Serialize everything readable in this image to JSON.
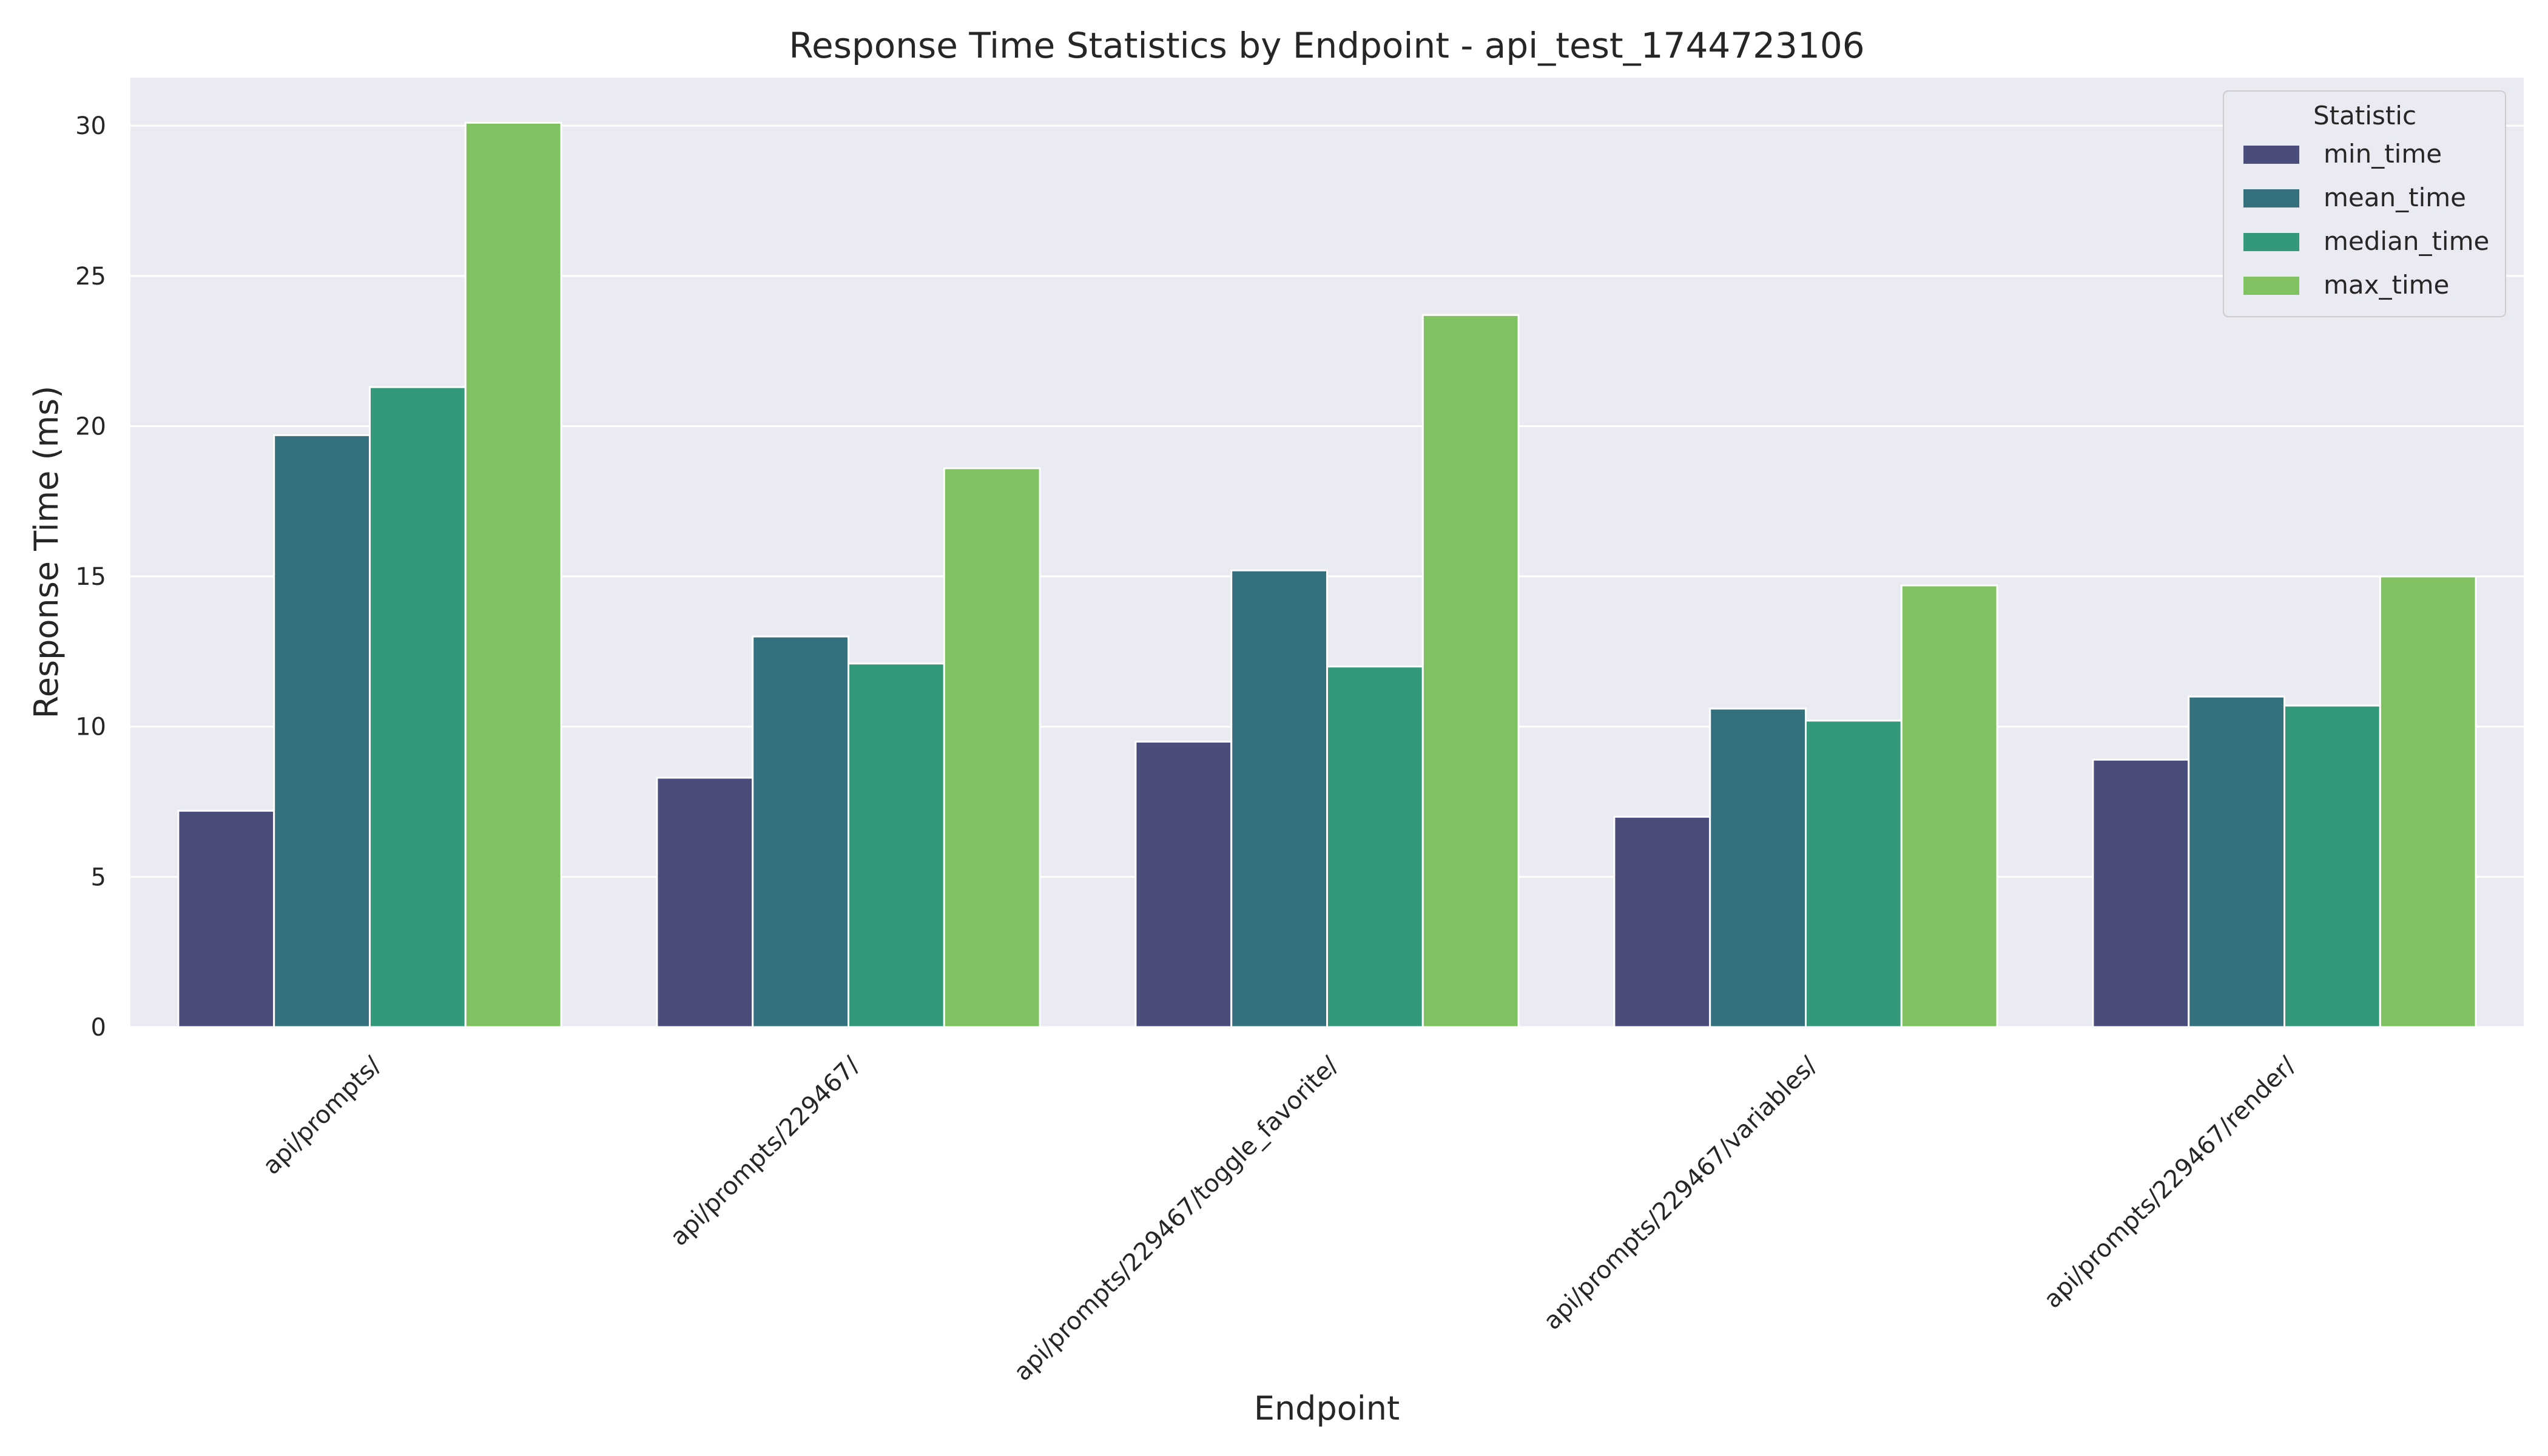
{
  "chart_data": {
    "type": "bar",
    "title": "Response Time Statistics by Endpoint - api_test_1744723106",
    "xlabel": "Endpoint",
    "ylabel": "Response Time (ms)",
    "categories": [
      "api/prompts/",
      "api/prompts/229467/",
      "api/prompts/229467/toggle_favorite/",
      "api/prompts/229467/variables/",
      "api/prompts/229467/render/"
    ],
    "series": [
      {
        "name": "min_time",
        "color": "#4a4c7c",
        "values": [
          7.2,
          8.3,
          9.5,
          7.0,
          8.9
        ]
      },
      {
        "name": "mean_time",
        "color": "#35707f",
        "values": [
          19.7,
          13.0,
          15.2,
          10.6,
          11.0
        ]
      },
      {
        "name": "median_time",
        "color": "#33997a",
        "values": [
          21.3,
          12.1,
          12.0,
          10.2,
          10.7
        ]
      },
      {
        "name": "max_time",
        "color": "#80c262",
        "values": [
          30.1,
          18.6,
          23.7,
          14.7,
          15.0
        ]
      }
    ],
    "ylim": [
      0,
      31.6
    ],
    "yticks": [
      0,
      5,
      10,
      15,
      20,
      25,
      30
    ],
    "grid": true,
    "legend": {
      "title": "Statistic",
      "position": "top-right"
    },
    "background": "#eaeaf2",
    "gridColor": "#ffffff"
  }
}
